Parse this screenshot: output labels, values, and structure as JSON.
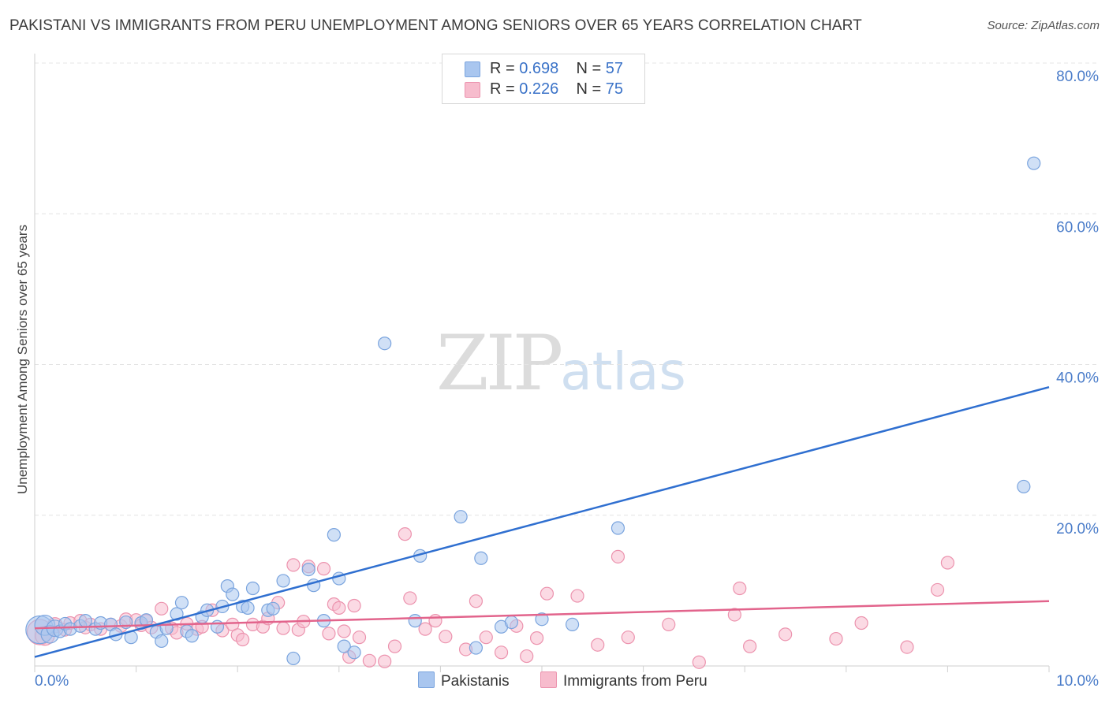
{
  "title": "PAKISTANI VS IMMIGRANTS FROM PERU UNEMPLOYMENT AMONG SENIORS OVER 65 YEARS CORRELATION CHART",
  "source": "Source: ZipAtlas.com",
  "watermark": {
    "zip": "ZIP",
    "atlas": "atlas"
  },
  "colors": {
    "pakistani_fill": "#a9c6ef",
    "pakistani_stroke": "#7aa4de",
    "pakistani_line": "#2f6fd0",
    "peru_fill": "#f7bccd",
    "peru_stroke": "#ec93ae",
    "peru_line": "#e2648c",
    "grid": "#e4e4e4",
    "tick_label": "#4a7cc9"
  },
  "legend": {
    "pakistani": {
      "r_label": "R = ",
      "r_value": "0.698",
      "n_label": "N = ",
      "n_value": "57"
    },
    "peru": {
      "r_label": "R = ",
      "r_value": "0.226",
      "n_label": "N = ",
      "n_value": "75"
    }
  },
  "chart_data": {
    "type": "scatter",
    "title": "PAKISTANI VS IMMIGRANTS FROM PERU UNEMPLOYMENT AMONG SENIORS OVER 65 YEARS CORRELATION CHART",
    "xlabel": "",
    "ylabel": "Unemployment Among Seniors over 65 years",
    "xlim": [
      0,
      10
    ],
    "ylim": [
      0,
      80
    ],
    "x_tick_labels": [
      "0.0%",
      "10.0%"
    ],
    "y_ticks": [
      20,
      40,
      60,
      80
    ],
    "y_tick_labels": [
      "20.0%",
      "40.0%",
      "60.0%",
      "80.0%"
    ],
    "grid": true,
    "legend_position": "top-center",
    "series": [
      {
        "name": "Pakistanis",
        "r": 0.698,
        "n": 57,
        "trend": {
          "x": [
            0,
            10
          ],
          "y": [
            1.2,
            37.0
          ]
        },
        "points": [
          [
            0.05,
            4.8,
            2.2
          ],
          [
            0.1,
            5.4,
            1.6
          ],
          [
            0.15,
            4.2,
            1.4
          ],
          [
            0.2,
            5.0,
            1.3
          ],
          [
            0.25,
            4.6,
            1.0
          ],
          [
            0.3,
            5.6,
            1.0
          ],
          [
            0.35,
            4.9,
            1.0
          ],
          [
            0.45,
            5.3,
            1.0
          ],
          [
            0.5,
            6.0,
            1.0
          ],
          [
            0.6,
            4.9,
            1.0
          ],
          [
            0.65,
            5.7,
            1.0
          ],
          [
            0.75,
            5.5,
            1.0
          ],
          [
            0.8,
            4.2,
            1.0
          ],
          [
            0.9,
            5.8,
            1.0
          ],
          [
            0.95,
            3.8,
            1.0
          ],
          [
            1.05,
            5.7,
            1.0
          ],
          [
            1.1,
            6.1,
            1.0
          ],
          [
            1.2,
            4.5,
            1.0
          ],
          [
            1.25,
            3.3,
            1.0
          ],
          [
            1.3,
            5.0,
            1.0
          ],
          [
            1.4,
            6.9,
            1.0
          ],
          [
            1.45,
            8.4,
            1.0
          ],
          [
            1.5,
            4.6,
            1.0
          ],
          [
            1.55,
            4.0,
            1.0
          ],
          [
            1.65,
            6.5,
            1.0
          ],
          [
            1.7,
            7.4,
            1.0
          ],
          [
            1.8,
            5.2,
            1.0
          ],
          [
            1.85,
            7.9,
            1.0
          ],
          [
            1.9,
            10.6,
            1.0
          ],
          [
            1.95,
            9.5,
            1.0
          ],
          [
            2.05,
            7.9,
            1.0
          ],
          [
            2.1,
            7.7,
            1.0
          ],
          [
            2.15,
            10.3,
            1.0
          ],
          [
            2.3,
            7.4,
            1.0
          ],
          [
            2.35,
            7.6,
            1.0
          ],
          [
            2.45,
            11.3,
            1.0
          ],
          [
            2.55,
            1.0,
            1.0
          ],
          [
            2.7,
            12.8,
            1.0
          ],
          [
            2.75,
            10.7,
            1.0
          ],
          [
            2.85,
            6.0,
            1.0
          ],
          [
            2.95,
            17.4,
            1.0
          ],
          [
            3.0,
            11.6,
            1.0
          ],
          [
            3.05,
            2.6,
            1.0
          ],
          [
            3.15,
            1.8,
            1.0
          ],
          [
            3.45,
            42.8,
            1.0
          ],
          [
            3.75,
            6.0,
            1.0
          ],
          [
            3.8,
            14.6,
            1.0
          ],
          [
            4.2,
            19.8,
            1.0
          ],
          [
            4.35,
            2.4,
            1.0
          ],
          [
            4.4,
            14.3,
            1.0
          ],
          [
            4.6,
            5.2,
            1.0
          ],
          [
            4.7,
            5.8,
            1.0
          ],
          [
            5.0,
            6.2,
            1.0
          ],
          [
            5.3,
            5.5,
            1.0
          ],
          [
            5.75,
            18.3,
            1.0
          ],
          [
            9.75,
            23.8,
            1.0
          ],
          [
            9.85,
            66.7,
            1.0
          ]
        ]
      },
      {
        "name": "Immigrants from Peru",
        "r": 0.226,
        "n": 75,
        "trend": {
          "x": [
            0,
            10
          ],
          "y": [
            5.0,
            8.6
          ]
        },
        "points": [
          [
            0.05,
            4.5,
            2.0
          ],
          [
            0.1,
            4.0,
            1.5
          ],
          [
            0.2,
            5.4,
            1.2
          ],
          [
            0.3,
            4.8,
            1.0
          ],
          [
            0.35,
            5.7,
            1.0
          ],
          [
            0.45,
            6.0,
            1.0
          ],
          [
            0.5,
            5.1,
            1.0
          ],
          [
            0.55,
            5.5,
            1.0
          ],
          [
            0.65,
            4.9,
            1.0
          ],
          [
            0.75,
            5.5,
            1.0
          ],
          [
            0.85,
            5.3,
            1.0
          ],
          [
            0.9,
            6.2,
            1.0
          ],
          [
            1.0,
            6.1,
            1.0
          ],
          [
            1.05,
            5.4,
            1.0
          ],
          [
            1.1,
            6.0,
            1.0
          ],
          [
            1.15,
            5.1,
            1.0
          ],
          [
            1.25,
            7.6,
            1.0
          ],
          [
            1.35,
            5.0,
            1.0
          ],
          [
            1.4,
            4.4,
            1.0
          ],
          [
            1.5,
            5.6,
            1.0
          ],
          [
            1.6,
            4.9,
            1.0
          ],
          [
            1.65,
            5.2,
            1.0
          ],
          [
            1.75,
            7.4,
            1.0
          ],
          [
            1.85,
            4.7,
            1.0
          ],
          [
            1.95,
            5.5,
            1.0
          ],
          [
            2.0,
            4.1,
            1.0
          ],
          [
            2.05,
            3.5,
            1.0
          ],
          [
            2.15,
            5.5,
            1.0
          ],
          [
            2.25,
            5.2,
            1.0
          ],
          [
            2.3,
            6.3,
            1.0
          ],
          [
            2.4,
            8.4,
            1.0
          ],
          [
            2.45,
            5.0,
            1.0
          ],
          [
            2.55,
            13.4,
            1.0
          ],
          [
            2.6,
            4.8,
            1.0
          ],
          [
            2.65,
            5.9,
            1.0
          ],
          [
            2.7,
            13.2,
            1.0
          ],
          [
            2.85,
            12.9,
            1.0
          ],
          [
            2.9,
            4.3,
            1.0
          ],
          [
            2.95,
            8.2,
            1.0
          ],
          [
            3.0,
            7.7,
            1.0
          ],
          [
            3.05,
            4.6,
            1.0
          ],
          [
            3.1,
            1.2,
            1.0
          ],
          [
            3.15,
            8.0,
            1.0
          ],
          [
            3.2,
            3.8,
            1.0
          ],
          [
            3.3,
            0.7,
            1.0
          ],
          [
            3.45,
            0.6,
            1.0
          ],
          [
            3.55,
            2.6,
            1.0
          ],
          [
            3.65,
            17.5,
            1.0
          ],
          [
            3.7,
            9.0,
            1.0
          ],
          [
            3.85,
            4.9,
            1.0
          ],
          [
            3.95,
            6.0,
            1.0
          ],
          [
            4.05,
            3.9,
            1.0
          ],
          [
            4.25,
            2.2,
            1.0
          ],
          [
            4.35,
            8.6,
            1.0
          ],
          [
            4.45,
            3.8,
            1.0
          ],
          [
            4.6,
            1.8,
            1.0
          ],
          [
            4.75,
            5.3,
            1.0
          ],
          [
            4.85,
            1.3,
            1.0
          ],
          [
            4.95,
            3.7,
            1.0
          ],
          [
            5.05,
            9.6,
            1.0
          ],
          [
            5.35,
            9.3,
            1.0
          ],
          [
            5.55,
            2.8,
            1.0
          ],
          [
            5.75,
            14.5,
            1.0
          ],
          [
            5.85,
            3.8,
            1.0
          ],
          [
            6.25,
            5.5,
            1.0
          ],
          [
            6.55,
            0.5,
            1.0
          ],
          [
            6.9,
            6.8,
            1.0
          ],
          [
            6.95,
            10.3,
            1.0
          ],
          [
            7.05,
            2.6,
            1.0
          ],
          [
            7.4,
            4.2,
            1.0
          ],
          [
            7.9,
            3.6,
            1.0
          ],
          [
            8.15,
            5.7,
            1.0
          ],
          [
            8.6,
            2.5,
            1.0
          ],
          [
            8.9,
            10.1,
            1.0
          ],
          [
            9.0,
            13.7,
            1.0
          ]
        ]
      }
    ]
  }
}
